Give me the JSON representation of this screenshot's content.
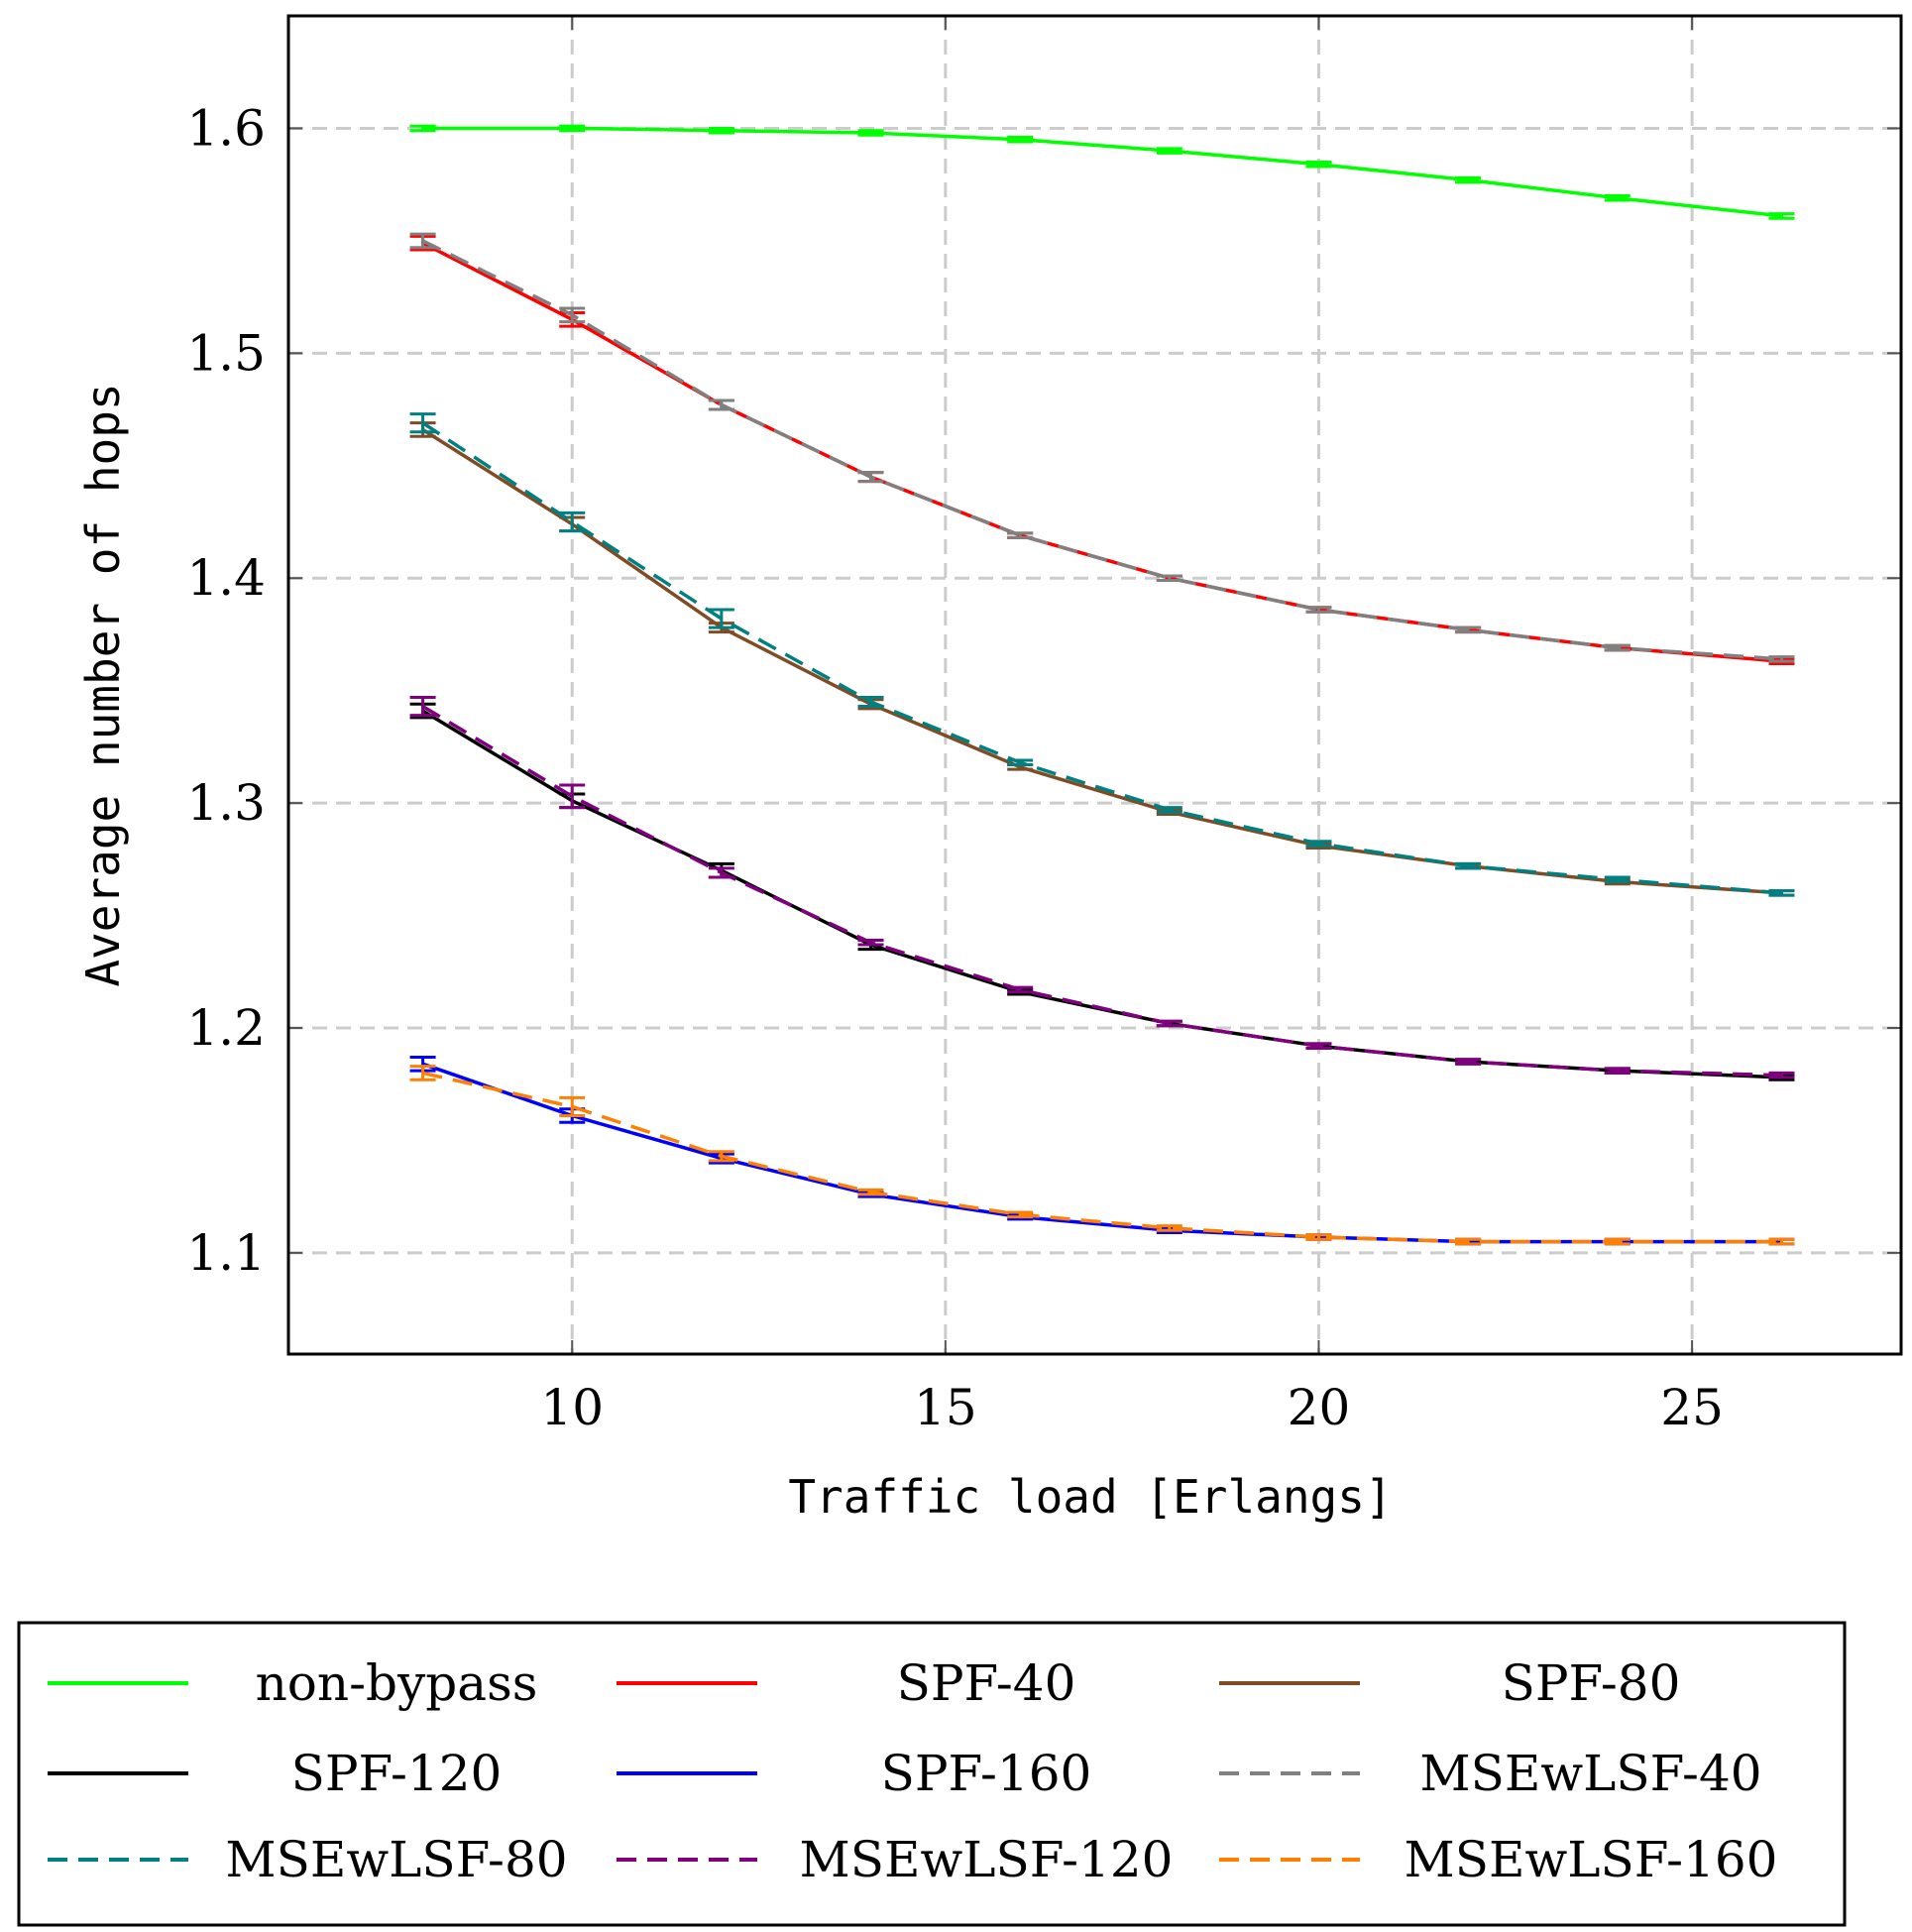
{
  "chart_data": {
    "type": "line",
    "xlabel": "Traffic load [Erlangs]",
    "ylabel": "Average number of hops",
    "xlim": [
      6.2,
      27.8
    ],
    "ylim": [
      1.055,
      1.65
    ],
    "xticks": [
      10,
      15,
      20,
      25
    ],
    "xtick_labels": [
      "10",
      "15",
      "20",
      "25"
    ],
    "yticks": [
      1.1,
      1.2,
      1.3,
      1.4,
      1.5,
      1.6
    ],
    "ytick_labels": [
      "1.1",
      "1.2",
      "1.3",
      "1.4",
      "1.5",
      "1.6"
    ],
    "grid": true,
    "legend_position": "below plot, three columns",
    "x": [
      8,
      10,
      12,
      14,
      16,
      18,
      20,
      22,
      24,
      26.2
    ],
    "series": [
      {
        "name": "non-bypass",
        "color": "#00ff00",
        "dash": "solid",
        "values": [
          1.6,
          1.6,
          1.599,
          1.598,
          1.595,
          1.59,
          1.584,
          1.577,
          1.569,
          1.561
        ],
        "errors": [
          0.001,
          0.001,
          0.001,
          0.001,
          0.001,
          0.001,
          0.001,
          0.001,
          0.001,
          0.001
        ]
      },
      {
        "name": "SPF-40",
        "color": "#ff0000",
        "dash": "solid",
        "values": [
          1.549,
          1.515,
          1.477,
          1.445,
          1.419,
          1.4,
          1.386,
          1.377,
          1.369,
          1.363
        ],
        "errors": [
          0.003,
          0.003,
          0.002,
          0.002,
          0.001,
          0.001,
          0.001,
          0.001,
          0.001,
          0.001
        ]
      },
      {
        "name": "SPF-80",
        "color": "#7f4c26",
        "dash": "solid",
        "values": [
          1.466,
          1.424,
          1.378,
          1.344,
          1.316,
          1.296,
          1.281,
          1.272,
          1.265,
          1.26
        ],
        "errors": [
          0.003,
          0.003,
          0.002,
          0.002,
          0.001,
          0.001,
          0.001,
          0.001,
          0.001,
          0.001
        ]
      },
      {
        "name": "SPF-120",
        "color": "#000000",
        "dash": "solid",
        "values": [
          1.341,
          1.301,
          1.27,
          1.237,
          1.216,
          1.202,
          1.192,
          1.185,
          1.181,
          1.178
        ],
        "errors": [
          0.003,
          0.003,
          0.003,
          0.002,
          0.001,
          0.001,
          0.001,
          0.001,
          0.001,
          0.001
        ]
      },
      {
        "name": "SPF-160",
        "color": "#0000ff",
        "dash": "solid",
        "values": [
          1.184,
          1.161,
          1.142,
          1.126,
          1.116,
          1.11,
          1.107,
          1.105,
          1.105,
          1.105
        ],
        "errors": [
          0.003,
          0.003,
          0.002,
          0.001,
          0.001,
          0.001,
          0.001,
          0.001,
          0.001,
          0.001
        ]
      },
      {
        "name": "MSEwLSF-40",
        "color": "#808080",
        "dash": "dashed",
        "values": [
          1.55,
          1.517,
          1.477,
          1.445,
          1.419,
          1.4,
          1.386,
          1.377,
          1.369,
          1.364
        ],
        "errors": [
          0.003,
          0.003,
          0.002,
          0.002,
          0.001,
          0.001,
          0.001,
          0.001,
          0.001,
          0.001
        ]
      },
      {
        "name": "MSEwLSF-80",
        "color": "#008080",
        "dash": "dashed",
        "values": [
          1.469,
          1.425,
          1.382,
          1.345,
          1.318,
          1.297,
          1.282,
          1.272,
          1.266,
          1.26
        ],
        "errors": [
          0.004,
          0.004,
          0.004,
          0.002,
          0.001,
          0.001,
          0.001,
          0.001,
          0.001,
          0.001
        ]
      },
      {
        "name": "MSEwLSF-120",
        "color": "#800080",
        "dash": "dashed",
        "values": [
          1.343,
          1.303,
          1.269,
          1.238,
          1.217,
          1.202,
          1.192,
          1.185,
          1.181,
          1.179
        ],
        "errors": [
          0.004,
          0.005,
          0.002,
          0.001,
          0.001,
          0.001,
          0.001,
          0.001,
          0.001,
          0.001
        ]
      },
      {
        "name": "MSEwLSF-160",
        "color": "#ff8000",
        "dash": "dashed",
        "values": [
          1.18,
          1.165,
          1.143,
          1.127,
          1.117,
          1.111,
          1.107,
          1.105,
          1.105,
          1.105
        ],
        "errors": [
          0.003,
          0.004,
          0.002,
          0.001,
          0.001,
          0.001,
          0.001,
          0.001,
          0.001,
          0.001
        ]
      }
    ]
  }
}
